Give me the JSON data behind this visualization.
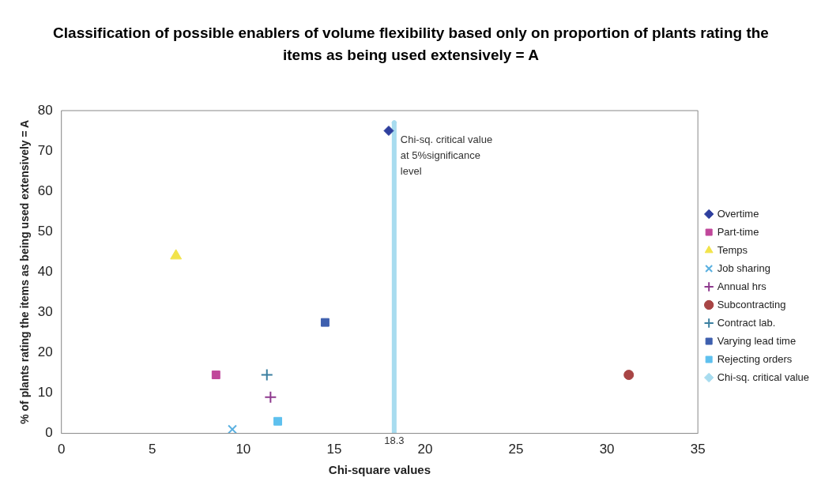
{
  "chart_data": {
    "type": "scatter",
    "title": "Classification of possible enablers of volume flexibility based only on proportion of plants rating the items as being used extensively = A",
    "xlabel": "Chi-square values",
    "ylabel": "% of plants rating the items as being used extensively = A",
    "xlim": [
      0,
      35
    ],
    "xticks": [
      0,
      5,
      10,
      15,
      20,
      25,
      30,
      35
    ],
    "ylim": [
      0,
      80
    ],
    "yticks": [
      0,
      10,
      20,
      30,
      40,
      50,
      60,
      70,
      80
    ],
    "grid": false,
    "legend": "right",
    "series": [
      {
        "name": "Overtime",
        "color": "#2e3f9e",
        "marker": "diamond",
        "x": [
          18
        ],
        "values": [
          75
        ]
      },
      {
        "name": "Part-time",
        "color": "#c0479a",
        "marker": "square",
        "x": [
          8.5
        ],
        "values": [
          14.5
        ]
      },
      {
        "name": "Temps",
        "color": "#f2e34a",
        "marker": "triangle",
        "x": [
          6.3
        ],
        "values": [
          44
        ]
      },
      {
        "name": "Job sharing",
        "color": "#5ab0e0",
        "marker": "x",
        "x": [
          9.4
        ],
        "values": [
          1
        ]
      },
      {
        "name": "Annual hrs",
        "color": "#8e3a8e",
        "marker": "cross",
        "x": [
          11.5
        ],
        "values": [
          9
        ]
      },
      {
        "name": "Subcontracting",
        "color": "#a84545",
        "marker": "circle",
        "x": [
          31.2
        ],
        "values": [
          14.5
        ]
      },
      {
        "name": "Contract lab.",
        "color": "#3a7fa0",
        "marker": "cross",
        "x": [
          11.3
        ],
        "values": [
          14.5
        ]
      },
      {
        "name": "Varying lead time",
        "color": "#3e5fae",
        "marker": "square",
        "x": [
          14.5
        ],
        "values": [
          27.5
        ]
      },
      {
        "name": "Rejecting orders",
        "color": "#5ec0ee",
        "marker": "square",
        "x": [
          11.9
        ],
        "values": [
          3
        ]
      },
      {
        "name": "Chi-sq. critical value",
        "color": "#a8dcef",
        "type": "line",
        "marker": "diamond",
        "x": [
          18.3,
          18.3
        ],
        "values": [
          0,
          77
        ]
      }
    ],
    "annotations": [
      {
        "text": "Chi-sq. critical value at 5%significance level",
        "x": 18.3,
        "y": 70
      },
      {
        "text": "18.3",
        "x": 18.3,
        "y": 0
      }
    ]
  }
}
